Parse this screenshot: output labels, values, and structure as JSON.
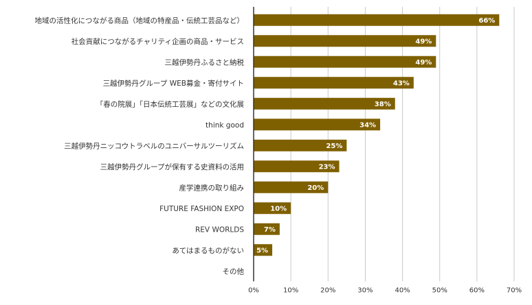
{
  "chart_data": {
    "type": "bar",
    "orientation": "horizontal",
    "categories": [
      "地域の活性化につながる商品（地域の特産品・伝統工芸品など）",
      "社会貢献につながるチャリティ企画の商品・サービス",
      "三越伊勢丹ふるさと納税",
      "三越伊勢丹グループ WEB募金・寄付サイト",
      "「春の院展」「日本伝統工芸展」などの文化展",
      "think good",
      "三越伊勢丹ニッコウトラベルのユニバーサルツーリズム",
      "三越伊勢丹グループが保有する史資料の活用",
      "産学連携の取り組み",
      "FUTURE FASHION EXPO",
      "REV WORLDS",
      "あてはまるものがない",
      "その他"
    ],
    "values": [
      66,
      49,
      49,
      43,
      38,
      34,
      25,
      23,
      20,
      10,
      7,
      5,
      0
    ],
    "data_labels": [
      "66%",
      "49%",
      "49%",
      "43%",
      "38%",
      "34%",
      "25%",
      "23%",
      "20%",
      "10%",
      "7%",
      "5%",
      ""
    ],
    "x_ticks": [
      "0%",
      "10%",
      "20%",
      "30%",
      "40%",
      "50%",
      "60%",
      "70%"
    ],
    "xlim": [
      0,
      70
    ],
    "grid": true,
    "legend": "none",
    "bar_color": "#7f6000"
  }
}
